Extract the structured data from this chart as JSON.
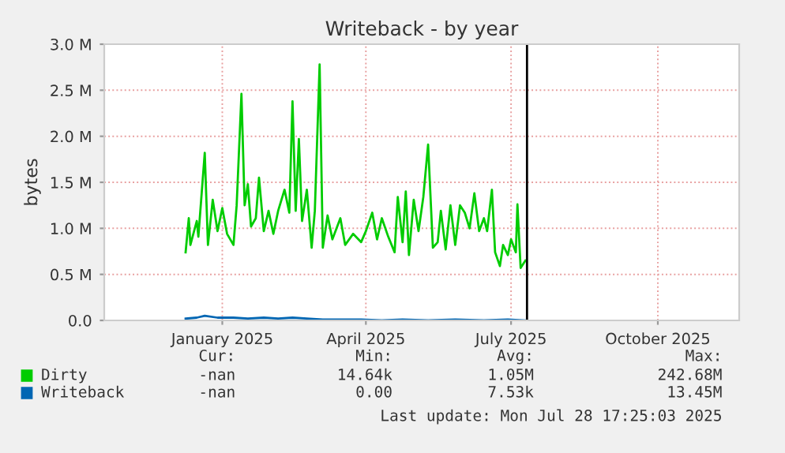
{
  "chart_data": {
    "type": "line",
    "title": "Writeback - by year",
    "ylabel": "bytes",
    "xlim": [
      "2024-10-19",
      "2025-11-21"
    ],
    "xticks": [
      {
        "value": "2025-01-01",
        "label": "January 2025"
      },
      {
        "value": "2025-04-01",
        "label": "April 2025"
      },
      {
        "value": "2025-07-01",
        "label": "July 2025"
      },
      {
        "value": "2025-10-01",
        "label": "October 2025"
      }
    ],
    "ylim": [
      0,
      3.0
    ],
    "yticks": [
      {
        "value": 0,
        "label": "0.0"
      },
      {
        "value": 0.5,
        "label": "0.5 M"
      },
      {
        "value": 1.0,
        "label": "1.0 M"
      },
      {
        "value": 1.5,
        "label": "1.5 M"
      },
      {
        "value": 2.0,
        "label": "2.0 M"
      },
      {
        "value": 2.5,
        "label": "2.5 M"
      },
      {
        "value": 3.0,
        "label": "3.0 M"
      }
    ],
    "grid": true,
    "legend": "bottom left",
    "ref_lines": [
      {
        "axis": "x",
        "value": "2025-07-11",
        "color": "#000000"
      }
    ],
    "series": [
      {
        "name": "Dirty",
        "color": "#00cc00",
        "x": [
          "2024-12-09",
          "2024-12-11",
          "2024-12-12",
          "2024-12-16",
          "2024-12-17",
          "2024-12-21",
          "2024-12-23",
          "2024-12-26",
          "2024-12-29",
          "2025-01-01",
          "2025-01-04",
          "2025-01-08",
          "2025-01-10",
          "2025-01-13",
          "2025-01-15",
          "2025-01-17",
          "2025-01-19",
          "2025-01-22",
          "2025-01-24",
          "2025-01-27",
          "2025-01-30",
          "2025-02-02",
          "2025-02-05",
          "2025-02-09",
          "2025-02-12",
          "2025-02-14",
          "2025-02-16",
          "2025-02-18",
          "2025-02-20",
          "2025-02-23",
          "2025-02-26",
          "2025-02-28",
          "2025-03-03",
          "2025-03-05",
          "2025-03-08",
          "2025-03-11",
          "2025-03-16",
          "2025-03-19",
          "2025-03-24",
          "2025-03-29",
          "2025-04-01",
          "2025-04-05",
          "2025-04-08",
          "2025-04-11",
          "2025-04-15",
          "2025-04-19",
          "2025-04-21",
          "2025-04-24",
          "2025-04-26",
          "2025-04-28",
          "2025-05-01",
          "2025-05-04",
          "2025-05-07",
          "2025-05-10",
          "2025-05-13",
          "2025-05-16",
          "2025-05-18",
          "2025-05-21",
          "2025-05-24",
          "2025-05-27",
          "2025-05-30",
          "2025-06-02",
          "2025-06-05",
          "2025-06-08",
          "2025-06-11",
          "2025-06-14",
          "2025-06-16",
          "2025-06-19",
          "2025-06-21",
          "2025-06-24",
          "2025-06-26",
          "2025-06-29",
          "2025-07-01",
          "2025-07-04",
          "2025-07-05",
          "2025-07-07",
          "2025-07-10"
        ],
        "values": [
          0.74,
          1.11,
          0.82,
          1.08,
          0.91,
          1.82,
          0.82,
          1.31,
          0.97,
          1.22,
          0.94,
          0.82,
          1.25,
          2.46,
          1.25,
          1.48,
          1.02,
          1.11,
          1.55,
          0.97,
          1.19,
          0.94,
          1.19,
          1.42,
          1.17,
          2.38,
          1.19,
          1.97,
          1.08,
          1.42,
          0.79,
          1.19,
          2.78,
          0.79,
          1.14,
          0.88,
          1.11,
          0.82,
          0.94,
          0.85,
          0.97,
          1.17,
          0.88,
          1.11,
          0.91,
          0.74,
          1.34,
          0.85,
          1.4,
          0.71,
          1.31,
          0.97,
          1.34,
          1.91,
          0.79,
          0.85,
          1.19,
          0.77,
          1.25,
          0.82,
          1.25,
          1.17,
          1.0,
          1.38,
          0.97,
          1.11,
          0.97,
          1.42,
          0.74,
          0.59,
          0.82,
          0.71,
          0.88,
          0.74,
          1.26,
          0.57,
          0.65
        ]
      },
      {
        "name": "Writeback",
        "color": "#0066b3",
        "x": [
          "2024-12-09",
          "2024-12-16",
          "2024-12-21",
          "2024-12-29",
          "2025-01-08",
          "2025-01-17",
          "2025-01-27",
          "2025-02-05",
          "2025-02-14",
          "2025-02-23",
          "2025-03-05",
          "2025-03-16",
          "2025-03-29",
          "2025-04-11",
          "2025-04-24",
          "2025-05-10",
          "2025-05-27",
          "2025-06-14",
          "2025-06-29",
          "2025-07-10"
        ],
        "values": [
          0.02,
          0.03,
          0.05,
          0.03,
          0.03,
          0.02,
          0.03,
          0.02,
          0.03,
          0.02,
          0.01,
          0.01,
          0.01,
          0.0,
          0.01,
          0.0,
          0.01,
          0.0,
          0.01,
          0.0
        ]
      }
    ],
    "annotations": [
      "Cur:",
      "Min:",
      "Avg:",
      "Max:",
      "-nan",
      "14.64k",
      "1.05M",
      "242.68M",
      "-nan",
      "0.00",
      "7.53k",
      "13.45M",
      "Last update: Mon Jul 28 17:25:03 2025"
    ]
  }
}
